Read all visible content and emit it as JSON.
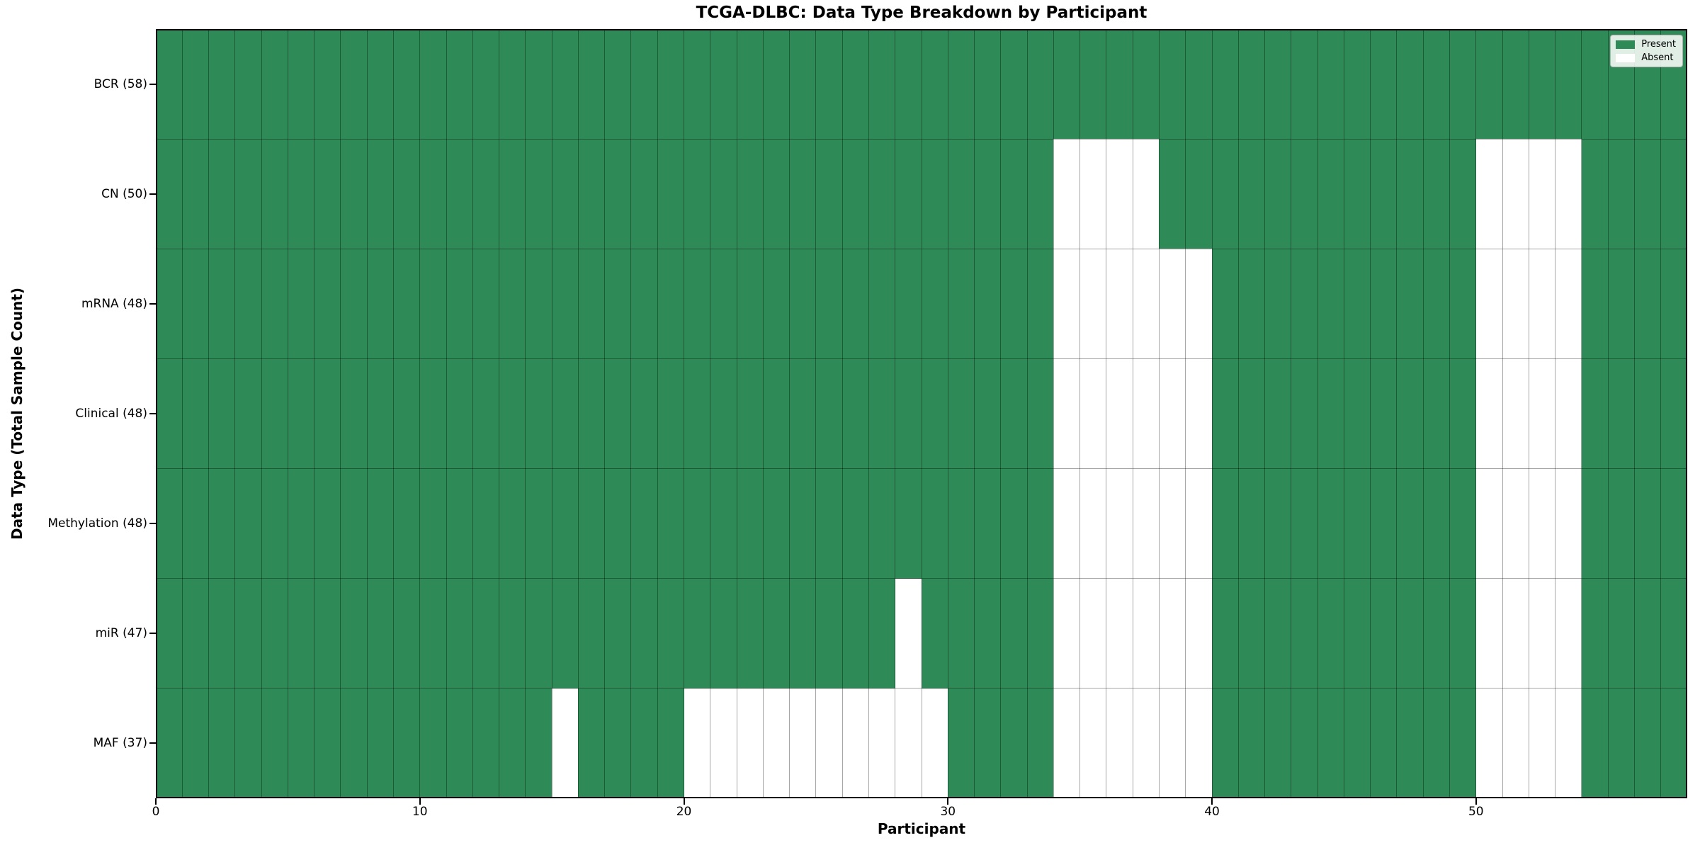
{
  "title": "TCGA-DLBC: Data Type Breakdown by Participant",
  "xlabel": "Participant",
  "ylabel": "Data Type (Total Sample Count)",
  "legend": {
    "position": "upper right",
    "items": [
      {
        "label": "Present",
        "color": "#2e8b57"
      },
      {
        "label": "Absent",
        "color": "#ffffff"
      }
    ]
  },
  "colors": {
    "present": "#2e8b57",
    "absent": "#ffffff",
    "grid": "rgba(0,0,0,0.35)",
    "spine": "#000000",
    "text": "#000000",
    "background": "#ffffff"
  },
  "chart_data": {
    "type": "heatmap",
    "title": "TCGA-DLBC: Data Type Breakdown by Participant",
    "xlabel": "Participant",
    "ylabel": "Data Type (Total Sample Count)",
    "n_participants": 58,
    "x_range": [
      0,
      58
    ],
    "x_ticks": [
      0,
      10,
      20,
      30,
      40,
      50
    ],
    "grid": true,
    "legend_position": "upper right",
    "value_encoding": {
      "present": 1,
      "absent": 0
    },
    "rows": [
      {
        "name": "BCR",
        "total": 58,
        "label": "BCR (58)",
        "absent_participants": []
      },
      {
        "name": "CN",
        "total": 50,
        "label": "CN (50)",
        "absent_participants": [
          34,
          35,
          36,
          37,
          50,
          51,
          52,
          53
        ]
      },
      {
        "name": "mRNA",
        "total": 48,
        "label": "mRNA (48)",
        "absent_participants": [
          34,
          35,
          36,
          37,
          38,
          39,
          50,
          51,
          52,
          53
        ]
      },
      {
        "name": "Clinical",
        "total": 48,
        "label": "Clinical (48)",
        "absent_participants": [
          34,
          35,
          36,
          37,
          38,
          39,
          50,
          51,
          52,
          53
        ]
      },
      {
        "name": "Methylation",
        "total": 48,
        "label": "Methylation (48)",
        "absent_participants": [
          34,
          35,
          36,
          37,
          38,
          39,
          50,
          51,
          52,
          53
        ]
      },
      {
        "name": "miR",
        "total": 47,
        "label": "miR (47)",
        "absent_participants": [
          28,
          34,
          35,
          36,
          37,
          38,
          39,
          50,
          51,
          52,
          53
        ]
      },
      {
        "name": "MAF",
        "total": 37,
        "label": "MAF (37)",
        "absent_participants": [
          15,
          20,
          21,
          22,
          23,
          24,
          25,
          26,
          27,
          28,
          29,
          34,
          35,
          36,
          37,
          38,
          39,
          50,
          51,
          52,
          53
        ]
      }
    ]
  }
}
